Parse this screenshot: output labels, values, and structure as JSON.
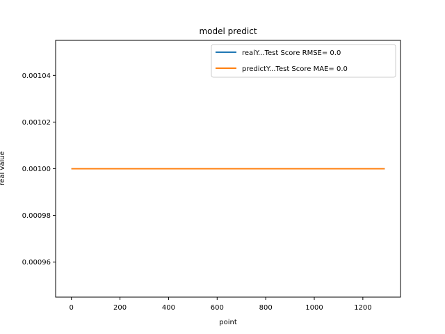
{
  "chart_data": {
    "type": "line",
    "title": "model predict",
    "xlabel": "point",
    "ylabel": "real value",
    "xlim": [
      -65,
      1355
    ],
    "ylim": [
      0.000945,
      0.001055
    ],
    "xticks": [
      0,
      200,
      400,
      600,
      800,
      1000,
      1200
    ],
    "yticks": [
      0.00096,
      0.00098,
      0.001,
      0.00102,
      0.00104
    ],
    "ytick_labels": [
      "0.00096",
      "0.00098",
      "0.00100",
      "0.00102",
      "0.00104"
    ],
    "grid": false,
    "legend_position": "top-right",
    "series": [
      {
        "name": "realY...Test Score RMSE= 0.0",
        "color": "#1f77b4",
        "x": [
          0,
          1290
        ],
        "y": [
          0.001,
          0.001
        ]
      },
      {
        "name": "predictY...Test Score MAE= 0.0",
        "color": "#ff7f0e",
        "x": [
          0,
          1290
        ],
        "y": [
          0.001,
          0.001
        ]
      }
    ]
  }
}
